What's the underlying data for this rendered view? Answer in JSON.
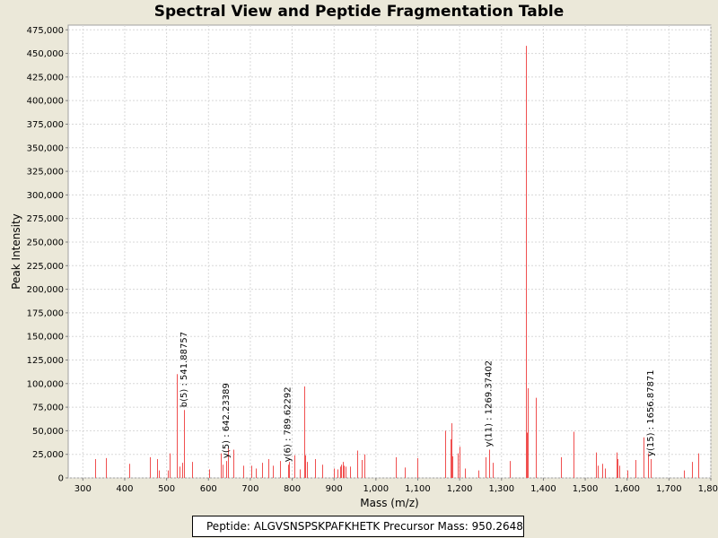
{
  "chart_data": {
    "type": "bar",
    "title": "Spectral View and Peptide Fragmentation Table",
    "xlabel": "Mass (m/z)",
    "ylabel": "Peak Intensity",
    "xlim": [
      265,
      1800
    ],
    "ylim": [
      0,
      480000
    ],
    "x_ticks": [
      300,
      400,
      500,
      600,
      700,
      800,
      900,
      1000,
      1100,
      1200,
      1300,
      1400,
      1500,
      1600,
      1700,
      1800
    ],
    "x_tick_labels": [
      "300",
      "400",
      "500",
      "600",
      "700",
      "800",
      "900",
      "1,000",
      "1,100",
      "1,200",
      "1,300",
      "1,400",
      "1,500",
      "1,600",
      "1,700",
      "1,800"
    ],
    "y_ticks": [
      0,
      25000,
      50000,
      75000,
      100000,
      125000,
      150000,
      175000,
      200000,
      225000,
      250000,
      275000,
      300000,
      325000,
      350000,
      375000,
      400000,
      425000,
      450000,
      475000
    ],
    "y_tick_labels": [
      "0",
      "25,000",
      "50,000",
      "75,000",
      "100,000",
      "125,000",
      "150,000",
      "175,000",
      "200,000",
      "225,000",
      "250,000",
      "275,000",
      "300,000",
      "325,000",
      "350,000",
      "375,000",
      "400,000",
      "425,000",
      "450,000",
      "475,000"
    ],
    "grid": true,
    "peak_color": "#f05050",
    "peaks": [
      {
        "x": 330,
        "y": 20000
      },
      {
        "x": 354,
        "y": 21000
      },
      {
        "x": 410,
        "y": 15000
      },
      {
        "x": 461,
        "y": 22000
      },
      {
        "x": 478,
        "y": 20000
      },
      {
        "x": 481,
        "y": 8000
      },
      {
        "x": 503,
        "y": 8000
      },
      {
        "x": 507,
        "y": 26000
      },
      {
        "x": 525,
        "y": 110000
      },
      {
        "x": 530,
        "y": 12000
      },
      {
        "x": 537,
        "y": 16000
      },
      {
        "x": 541.9,
        "y": 72000
      },
      {
        "x": 560,
        "y": 17000
      },
      {
        "x": 601,
        "y": 9000
      },
      {
        "x": 630,
        "y": 26000
      },
      {
        "x": 634,
        "y": 14000
      },
      {
        "x": 642.2,
        "y": 18000
      },
      {
        "x": 647,
        "y": 31000
      },
      {
        "x": 660,
        "y": 30000
      },
      {
        "x": 682,
        "y": 13000
      },
      {
        "x": 702,
        "y": 13000
      },
      {
        "x": 713,
        "y": 10000
      },
      {
        "x": 728,
        "y": 16000
      },
      {
        "x": 744,
        "y": 20000
      },
      {
        "x": 753,
        "y": 13000
      },
      {
        "x": 772,
        "y": 18000
      },
      {
        "x": 789.6,
        "y": 14000
      },
      {
        "x": 792,
        "y": 17000
      },
      {
        "x": 805,
        "y": 24000
      },
      {
        "x": 819,
        "y": 9000
      },
      {
        "x": 828,
        "y": 97000
      },
      {
        "x": 831,
        "y": 24000
      },
      {
        "x": 836,
        "y": 17000
      },
      {
        "x": 854,
        "y": 20000
      },
      {
        "x": 871,
        "y": 14000
      },
      {
        "x": 900,
        "y": 10000
      },
      {
        "x": 908,
        "y": 9000
      },
      {
        "x": 914,
        "y": 12000
      },
      {
        "x": 917,
        "y": 14000
      },
      {
        "x": 920,
        "y": 17000
      },
      {
        "x": 924,
        "y": 13000
      },
      {
        "x": 927,
        "y": 12000
      },
      {
        "x": 939,
        "y": 12000
      },
      {
        "x": 956,
        "y": 29000
      },
      {
        "x": 966,
        "y": 19000
      },
      {
        "x": 973,
        "y": 25000
      },
      {
        "x": 1047,
        "y": 22000
      },
      {
        "x": 1068,
        "y": 11000
      },
      {
        "x": 1098,
        "y": 21000
      },
      {
        "x": 1165,
        "y": 50000
      },
      {
        "x": 1178,
        "y": 41000
      },
      {
        "x": 1180,
        "y": 58000
      },
      {
        "x": 1183,
        "y": 23000
      },
      {
        "x": 1195,
        "y": 26000
      },
      {
        "x": 1199,
        "y": 33000
      },
      {
        "x": 1212,
        "y": 10000
      },
      {
        "x": 1245,
        "y": 8000
      },
      {
        "x": 1262,
        "y": 22000
      },
      {
        "x": 1269.4,
        "y": 30000
      },
      {
        "x": 1280,
        "y": 16000
      },
      {
        "x": 1320,
        "y": 18000
      },
      {
        "x": 1358,
        "y": 458000
      },
      {
        "x": 1360,
        "y": 48000
      },
      {
        "x": 1362,
        "y": 95000
      },
      {
        "x": 1382,
        "y": 85000
      },
      {
        "x": 1443,
        "y": 22000
      },
      {
        "x": 1472,
        "y": 49000
      },
      {
        "x": 1526,
        "y": 27000
      },
      {
        "x": 1530,
        "y": 13000
      },
      {
        "x": 1540,
        "y": 15000
      },
      {
        "x": 1548,
        "y": 10000
      },
      {
        "x": 1575,
        "y": 27000
      },
      {
        "x": 1578,
        "y": 20000
      },
      {
        "x": 1582,
        "y": 13000
      },
      {
        "x": 1600,
        "y": 8000
      },
      {
        "x": 1620,
        "y": 19000
      },
      {
        "x": 1640,
        "y": 43000
      },
      {
        "x": 1650,
        "y": 26000
      },
      {
        "x": 1656.9,
        "y": 20000
      },
      {
        "x": 1735,
        "y": 8000
      },
      {
        "x": 1755,
        "y": 17000
      },
      {
        "x": 1770,
        "y": 26000
      }
    ],
    "annotations": [
      {
        "label": "b(5) : 541.88757",
        "x": 541.9,
        "y": 72000
      },
      {
        "label": "y(5) : 642.23389",
        "x": 642.2,
        "y": 18000
      },
      {
        "label": "y(6) : 789.62292",
        "x": 789.6,
        "y": 14000
      },
      {
        "label": "y(11) : 1269.37402",
        "x": 1269.4,
        "y": 30000
      },
      {
        "label": "y(15) : 1656.87871",
        "x": 1656.9,
        "y": 20000
      }
    ]
  },
  "footer": {
    "peptide": "Peptide: ALGVSNSPSKPAFKHETK",
    "precursor": "Precursor Mass: 950.2648"
  }
}
